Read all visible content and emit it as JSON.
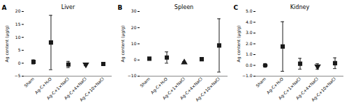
{
  "chart_data": [
    {
      "type": "scatter",
      "panel_label": "A",
      "title": "Liver",
      "ylabel": "Ag content (μg/g)",
      "ylim": [
        -5,
        20
      ],
      "yticks": [
        -5,
        0,
        5,
        10,
        15,
        20
      ],
      "categories": [
        "Sham",
        "Ag-C+H₂O",
        "Ag-C+1×NaCl",
        "Ag-C+4×NaCl",
        "Ag-C+10×NaCl"
      ],
      "values": [
        0.5,
        8.0,
        -0.5,
        -0.5,
        -0.3
      ],
      "error_up": [
        0.8,
        10.5,
        1.2,
        0.5,
        0.3
      ],
      "error_down": [
        0.8,
        10.5,
        1.2,
        0.5,
        0.3
      ],
      "marker": [
        "square",
        "square",
        "square",
        "triangle-down",
        "square"
      ],
      "color": "#1a1a1a",
      "grid": false
    },
    {
      "type": "scatter",
      "panel_label": "B",
      "title": "Spleen",
      "ylabel": "Ag content (μg/g)",
      "ylim": [
        -10,
        30
      ],
      "yticks": [
        -10,
        0,
        10,
        20,
        30
      ],
      "categories": [
        "Sham",
        "Ag-C+H₂O",
        "Ag-C+1×NaCl",
        "Ag-C+4×NaCl",
        "Ag-C+10×NaCl"
      ],
      "values": [
        0.8,
        1.5,
        -1.5,
        0.5,
        9.0
      ],
      "error_up": [
        0.8,
        3.5,
        0.5,
        0.8,
        16.5
      ],
      "error_down": [
        0.8,
        3.5,
        0.5,
        0.8,
        16.5
      ],
      "marker": [
        "square",
        "square",
        "triangle-up",
        "square",
        "square"
      ],
      "color": "#1a1a1a",
      "grid": false
    },
    {
      "type": "scatter",
      "panel_label": "C",
      "title": "Kidney",
      "ylabel": "Ag content (μg/g)",
      "ylim": [
        -1,
        5
      ],
      "yticks": [
        -1,
        0,
        1,
        2,
        3,
        4,
        5
      ],
      "categories": [
        "Sham",
        "Ag-C+H₂O",
        "Ag-C+1×NaCl",
        "Ag-C+4×NaCl",
        "Ag-C+10×NaCl"
      ],
      "values": [
        0.0,
        1.75,
        0.15,
        -0.1,
        0.2
      ],
      "error_up": [
        0.15,
        2.3,
        0.5,
        0.25,
        0.5
      ],
      "error_down": [
        0.15,
        2.3,
        0.5,
        0.25,
        0.5
      ],
      "marker": [
        "circle",
        "square",
        "square",
        "triangle-down",
        "square"
      ],
      "color": "#1a1a1a",
      "grid": false
    }
  ]
}
